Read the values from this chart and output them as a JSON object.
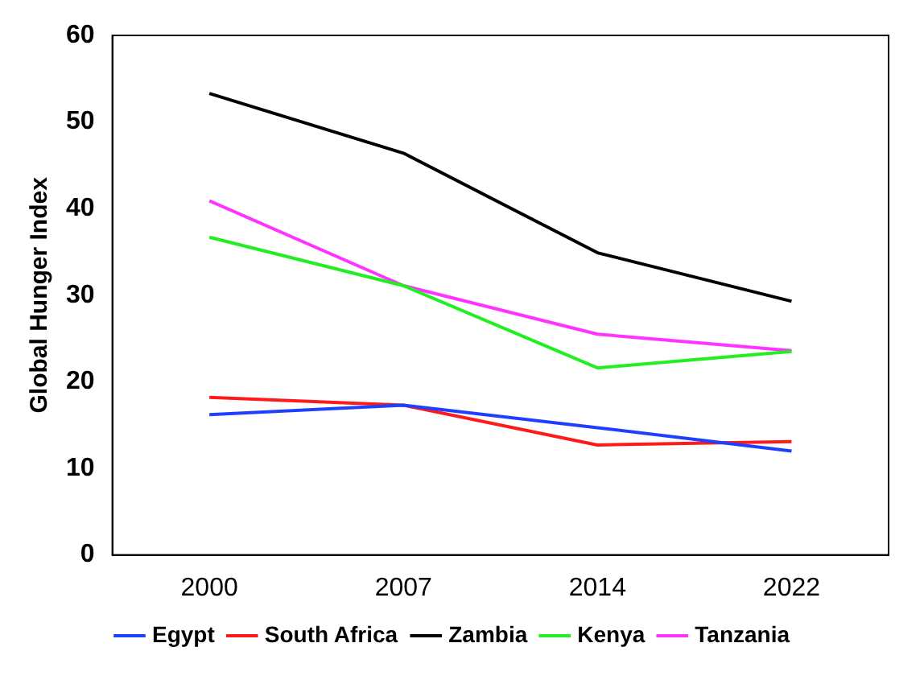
{
  "chart_data": {
    "type": "line",
    "ylabel": "Global Hunger Index",
    "categories": [
      "2000",
      "2007",
      "2014",
      "2022"
    ],
    "ylim": [
      0,
      60
    ],
    "yticks": [
      0,
      10,
      20,
      30,
      40,
      50,
      60
    ],
    "grid": false,
    "legend": "bottom",
    "marker": "none",
    "series": [
      {
        "name": "Egypt",
        "color": "#1f3fff",
        "values": [
          16.2,
          17.3,
          14.7,
          12.0
        ]
      },
      {
        "name": "South Africa",
        "color": "#ff1a1a",
        "values": [
          18.2,
          17.3,
          12.7,
          13.1
        ]
      },
      {
        "name": "Zambia",
        "color": "#000000",
        "values": [
          53.3,
          46.4,
          34.9,
          29.3
        ]
      },
      {
        "name": "Kenya",
        "color": "#22ee22",
        "values": [
          36.7,
          31.1,
          21.6,
          23.5
        ]
      },
      {
        "name": "Tanzania",
        "color": "#ff33ff",
        "values": [
          40.9,
          31.1,
          25.5,
          23.6
        ]
      }
    ]
  }
}
